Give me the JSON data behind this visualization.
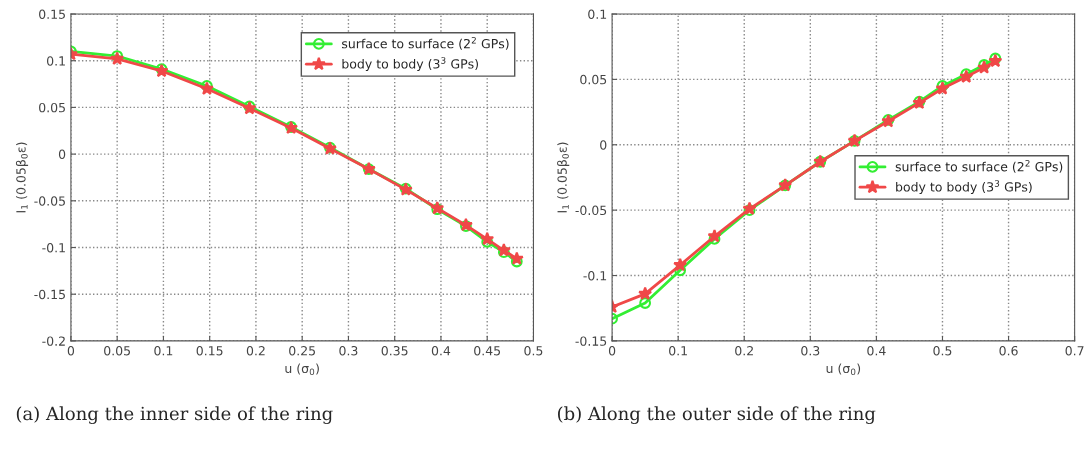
{
  "chart_data": [
    {
      "type": "line",
      "xlabel": "u (σ$_{0}$)",
      "ylabel": "I$_{1}$ (0.05β$_{0}$ε)",
      "xlim": [
        0,
        0.5
      ],
      "xticks": [
        0,
        0.05,
        0.1,
        0.15,
        0.2,
        0.25,
        0.3,
        0.35,
        0.4,
        0.45,
        0.5
      ],
      "ylim": [
        -0.2,
        0.15
      ],
      "yticks": [
        -0.2,
        -0.15,
        -0.1,
        -0.05,
        0,
        0.05,
        0.1,
        0.15
      ],
      "grid": true,
      "legend": "top right",
      "line_style": "solid",
      "x": [
        0,
        0.05,
        0.098,
        0.147,
        0.193,
        0.238,
        0.28,
        0.322,
        0.362,
        0.396,
        0.427,
        0.45,
        0.468,
        0.482
      ],
      "series": [
        {
          "name": "surface to surface (2$^{2}$ GPs)",
          "color": "#33ee33",
          "marker": "circle",
          "values": [
            0.11,
            0.105,
            0.091,
            0.073,
            0.051,
            0.029,
            0.007,
            -0.016,
            -0.037,
            -0.059,
            -0.077,
            -0.094,
            -0.105,
            -0.115
          ]
        },
        {
          "name": "body to body (3$^{3}$ GPs)",
          "color": "#f04848",
          "marker": "star",
          "values": [
            0.107,
            0.102,
            0.089,
            0.07,
            0.049,
            0.028,
            0.006,
            -0.016,
            -0.038,
            -0.058,
            -0.076,
            -0.091,
            -0.103,
            -0.112
          ]
        }
      ],
      "annotations": [
        "(a) Along the inner side of the ring"
      ]
    },
    {
      "type": "line",
      "xlabel": "u (σ$_{0}$)",
      "ylabel": "I$_{1}$ (0.05β$_{0}$ε)",
      "xlim": [
        0,
        0.7
      ],
      "xticks": [
        0,
        0.1,
        0.2,
        0.3,
        0.4,
        0.5,
        0.6,
        0.7
      ],
      "ylim": [
        -0.15,
        0.1
      ],
      "yticks": [
        -0.15,
        -0.1,
        -0.05,
        0,
        0.05,
        0.1
      ],
      "grid": true,
      "legend": "right",
      "line_style": "solid",
      "x": [
        0,
        0.05,
        0.103,
        0.155,
        0.208,
        0.262,
        0.315,
        0.367,
        0.418,
        0.465,
        0.5,
        0.536,
        0.563,
        0.58
      ],
      "series": [
        {
          "name": "surface to surface (2$^{2}$ GPs)",
          "color": "#33ee33",
          "marker": "circle",
          "values": [
            -0.133,
            -0.121,
            -0.096,
            -0.072,
            -0.05,
            -0.031,
            -0.013,
            0.003,
            0.019,
            0.033,
            0.045,
            0.054,
            0.061,
            0.066
          ]
        },
        {
          "name": "body to body (3$^{3}$ GPs)",
          "color": "#f04848",
          "marker": "star",
          "values": [
            -0.124,
            -0.114,
            -0.092,
            -0.07,
            -0.049,
            -0.031,
            -0.013,
            0.003,
            0.018,
            0.032,
            0.043,
            0.052,
            0.059,
            0.064
          ]
        }
      ],
      "annotations": [
        "(b) Along the outer side of the ring"
      ]
    }
  ]
}
